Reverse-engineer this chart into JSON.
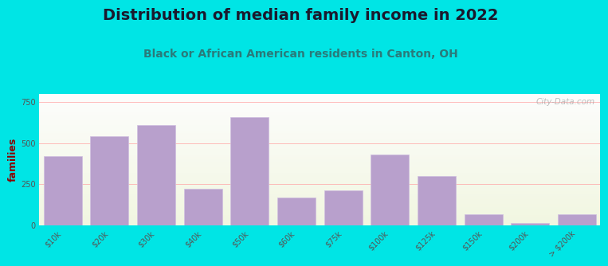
{
  "title": "Distribution of median family income in 2022",
  "subtitle": "Black or African American residents in Canton, OH",
  "ylabel": "families",
  "categories": [
    "$10k",
    "$20k",
    "$30k",
    "$40k",
    "$50k",
    "$60k",
    "$75k",
    "$100k",
    "$125k",
    "$150k",
    "$200k",
    "> $200k"
  ],
  "values": [
    420,
    540,
    610,
    220,
    660,
    170,
    210,
    430,
    300,
    65,
    15,
    65
  ],
  "bar_color": "#b8a0cc",
  "bar_edge_color": "#d0c0e0",
  "ylim": [
    0,
    800
  ],
  "yticks": [
    0,
    250,
    500,
    750
  ],
  "background_outer": "#00e5e5",
  "bg_top_color": "#e8f5e0",
  "bg_bottom_color": "#f5f5ff",
  "title_fontsize": 14,
  "title_color": "#1a1a2e",
  "subtitle_fontsize": 10,
  "subtitle_color": "#2a7a7a",
  "ylabel_fontsize": 9,
  "ylabel_color": "#8b0000",
  "tick_fontsize": 7,
  "tick_color": "#555555",
  "grid_color": "#ffaaaa",
  "watermark": "City-Data.com",
  "watermark_color": "#aaaaaa"
}
